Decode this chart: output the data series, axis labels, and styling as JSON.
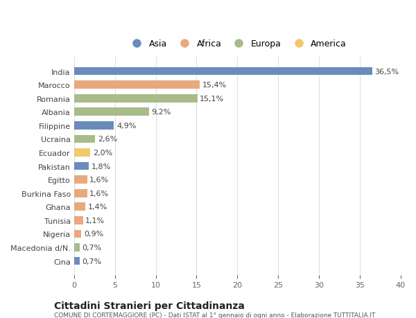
{
  "categories": [
    "India",
    "Marocco",
    "Romania",
    "Albania",
    "Filippine",
    "Ucraina",
    "Ecuador",
    "Pakistan",
    "Egitto",
    "Burkina Faso",
    "Ghana",
    "Tunisia",
    "Nigeria",
    "Macedonia d/N.",
    "Cina"
  ],
  "values": [
    36.5,
    15.4,
    15.1,
    9.2,
    4.9,
    2.6,
    2.0,
    1.8,
    1.6,
    1.6,
    1.4,
    1.1,
    0.9,
    0.7,
    0.7
  ],
  "labels": [
    "36,5%",
    "15,4%",
    "15,1%",
    "9,2%",
    "4,9%",
    "2,6%",
    "2,0%",
    "1,8%",
    "1,6%",
    "1,6%",
    "1,4%",
    "1,1%",
    "0,9%",
    "0,7%",
    "0,7%"
  ],
  "regions": [
    "Asia",
    "Africa",
    "Europa",
    "Europa",
    "Asia",
    "Europa",
    "America",
    "Asia",
    "Africa",
    "Africa",
    "Africa",
    "Africa",
    "Africa",
    "Europa",
    "Asia"
  ],
  "region_colors": {
    "Asia": "#6b8cba",
    "Africa": "#e8a97e",
    "Europa": "#a8bb8a",
    "America": "#f0c96e"
  },
  "legend_order": [
    "Asia",
    "Africa",
    "Europa",
    "America"
  ],
  "title": "Cittadini Stranieri per Cittadinanza",
  "subtitle": "COMUNE DI CORTEMAGGIORE (PC) - Dati ISTAT al 1° gennaio di ogni anno - Elaborazione TUTTITALIA.IT",
  "xlim": [
    0,
    40
  ],
  "xticks": [
    0,
    5,
    10,
    15,
    20,
    25,
    30,
    35,
    40
  ],
  "background_color": "#ffffff",
  "grid_color": "#e0e0e0"
}
